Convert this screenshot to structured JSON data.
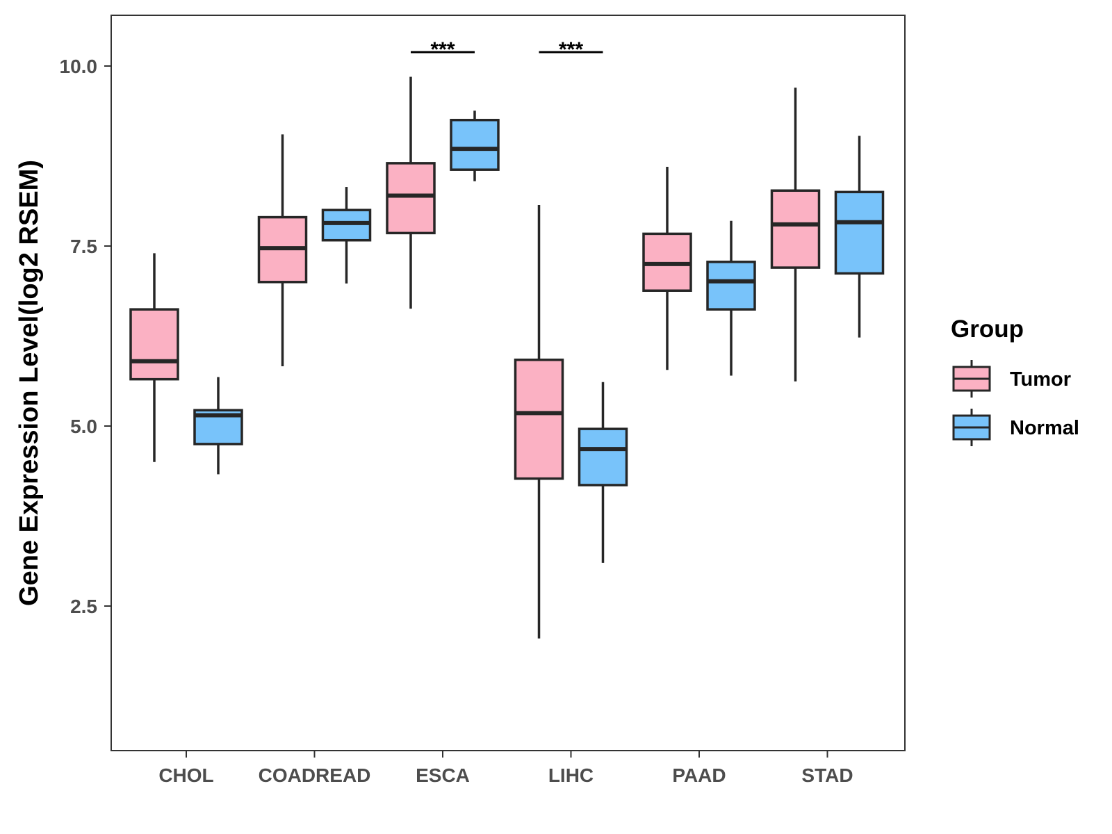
{
  "chart_data": {
    "type": "boxplot",
    "title": "",
    "xlabel": "",
    "ylabel": "Gene Expression Level(log2 RSEM)",
    "ylim": [
      0.5,
      10.7
    ],
    "yticks": [
      {
        "value": 2.5,
        "label": "2.5"
      },
      {
        "value": 5.0,
        "label": "5.0"
      },
      {
        "value": 7.5,
        "label": "7.5"
      },
      {
        "value": 10.0,
        "label": "10.0"
      }
    ],
    "categories": [
      "CHOL",
      "COADREAD",
      "ESCA",
      "LIHC",
      "PAAD",
      "STAD"
    ],
    "legend": {
      "title": "Group",
      "position": "right",
      "entries": [
        {
          "name": "Tumor",
          "color": "#FBB1C3"
        },
        {
          "name": "Normal",
          "color": "#78C3FA"
        }
      ]
    },
    "series": [
      {
        "name": "Tumor",
        "color": "#FBB1C3",
        "boxes": [
          {
            "category": "CHOL",
            "min": 4.5,
            "q1": 5.65,
            "median": 5.9,
            "q3": 6.62,
            "max": 7.4
          },
          {
            "category": "COADREAD",
            "min": 5.83,
            "q1": 7.0,
            "median": 7.47,
            "q3": 7.9,
            "max": 9.05
          },
          {
            "category": "ESCA",
            "min": 6.63,
            "q1": 7.68,
            "median": 8.2,
            "q3": 8.65,
            "max": 9.85
          },
          {
            "category": "LIHC",
            "min": 2.05,
            "q1": 4.27,
            "median": 5.18,
            "q3": 5.92,
            "max": 8.07
          },
          {
            "category": "PAAD",
            "min": 5.78,
            "q1": 6.88,
            "median": 7.25,
            "q3": 7.67,
            "max": 8.6
          },
          {
            "category": "STAD",
            "min": 5.62,
            "q1": 7.2,
            "median": 7.8,
            "q3": 8.27,
            "max": 9.7
          }
        ]
      },
      {
        "name": "Normal",
        "color": "#78C3FA",
        "boxes": [
          {
            "category": "CHOL",
            "min": 4.33,
            "q1": 4.75,
            "median": 5.15,
            "q3": 5.22,
            "max": 5.68
          },
          {
            "category": "COADREAD",
            "min": 6.98,
            "q1": 7.58,
            "median": 7.82,
            "q3": 8.0,
            "max": 8.32
          },
          {
            "category": "ESCA",
            "min": 8.4,
            "q1": 8.56,
            "median": 8.85,
            "q3": 9.25,
            "max": 9.38
          },
          {
            "category": "LIHC",
            "min": 3.1,
            "q1": 4.18,
            "median": 4.68,
            "q3": 4.96,
            "max": 5.61
          },
          {
            "category": "PAAD",
            "min": 5.7,
            "q1": 6.62,
            "median": 7.01,
            "q3": 7.28,
            "max": 7.85
          },
          {
            "category": "STAD",
            "min": 6.23,
            "q1": 7.12,
            "median": 7.83,
            "q3": 8.25,
            "max": 9.03
          }
        ]
      }
    ],
    "significance": [
      {
        "category": "ESCA",
        "label": "***"
      },
      {
        "category": "LIHC",
        "label": "***"
      }
    ]
  }
}
